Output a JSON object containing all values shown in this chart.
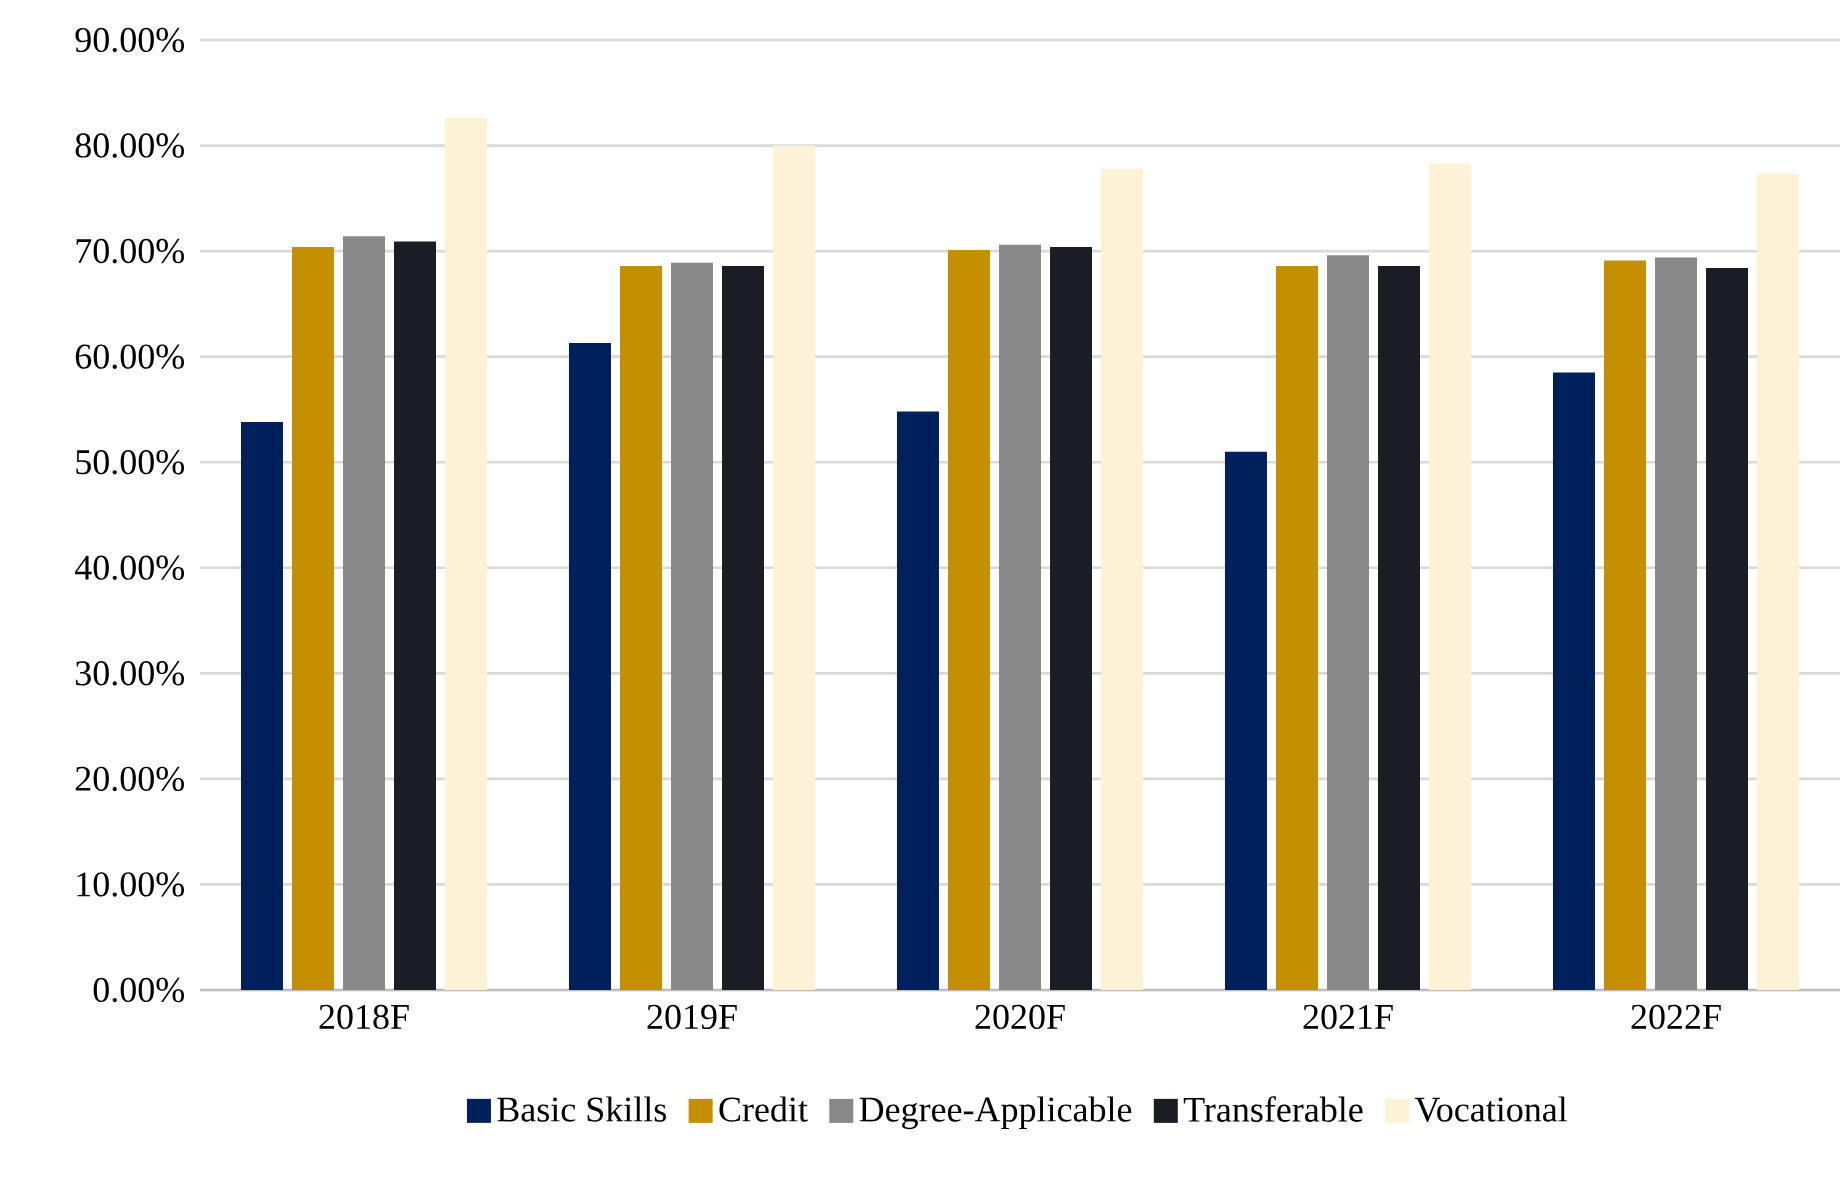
{
  "chart_data": {
    "type": "bar",
    "categories": [
      "2018F",
      "2019F",
      "2020F",
      "2021F",
      "2022F"
    ],
    "series": [
      {
        "name": "Basic Skills",
        "color": "#00205b",
        "values": [
          53.8,
          61.3,
          54.8,
          51.0,
          58.5
        ]
      },
      {
        "name": "Credit",
        "color": "#c48f00",
        "values": [
          70.4,
          68.6,
          70.1,
          68.6,
          69.1
        ]
      },
      {
        "name": "Degree-Applicable",
        "color": "#898989",
        "values": [
          71.4,
          68.9,
          70.6,
          69.6,
          69.4
        ]
      },
      {
        "name": "Transferable",
        "color": "#1a1d24",
        "values": [
          70.9,
          68.6,
          70.4,
          68.6,
          68.4
        ]
      },
      {
        "name": "Vocational",
        "color": "#fef2d6",
        "values": [
          82.6,
          80.0,
          77.8,
          78.3,
          77.3
        ]
      }
    ],
    "ylim": [
      0,
      90
    ],
    "yticks": [
      {
        "value": 0,
        "label": "0.00%"
      },
      {
        "value": 10,
        "label": "10.00%"
      },
      {
        "value": 20,
        "label": "20.00%"
      },
      {
        "value": 30,
        "label": "30.00%"
      },
      {
        "value": 40,
        "label": "40.00%"
      },
      {
        "value": 50,
        "label": "50.00%"
      },
      {
        "value": 60,
        "label": "60.00%"
      },
      {
        "value": 70,
        "label": "70.00%"
      },
      {
        "value": 80,
        "label": "80.00%"
      },
      {
        "value": 90,
        "label": "90.00%"
      }
    ],
    "grid": "y",
    "legend": "bottom"
  }
}
